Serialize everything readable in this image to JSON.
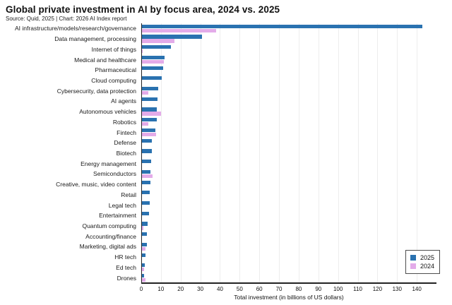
{
  "header": {
    "title": "Global private investment in AI by focus area, 2024 vs. 2025",
    "subtitle": "Source: Quid, 2025 | Chart: 2026 AI Index report"
  },
  "colors": {
    "bar_2025": "#2a72b0",
    "bar_2024": "#e3abe9",
    "axis": "#222222",
    "gridline": "#ededed"
  },
  "legend": {
    "items": [
      {
        "label": "2025",
        "color": "#2a72b0"
      },
      {
        "label": "2024",
        "color": "#e3abe9"
      }
    ]
  },
  "chart_data": {
    "type": "bar",
    "orientation": "horizontal",
    "title": "Global private investment in AI by focus area, 2024 vs. 2025",
    "subtitle": "Source: Quid, 2025 | Chart: 2026 AI Index report",
    "xlabel": "Total investment (in billions of US dollars)",
    "ylabel": "",
    "xlim": [
      0,
      150
    ],
    "xticks": [
      0,
      10,
      20,
      30,
      40,
      50,
      60,
      70,
      80,
      90,
      100,
      110,
      120,
      130,
      140
    ],
    "grid": true,
    "legend_position": "bottom-right",
    "categories": [
      "AI infrastructure/models/research/governance",
      "Data management, processing",
      "Internet of things",
      "Medical and healthcare",
      "Pharmaceutical",
      "Cloud computing",
      "Cybersecurity, data protection",
      "AI agents",
      "Autonomous vehicles",
      "Robotics",
      "Fintech",
      "Defense",
      "Biotech",
      "Energy management",
      "Semiconductors",
      "Creative, music, video content",
      "Retail",
      "Legal tech",
      "Entertainment",
      "Quantum computing",
      "Accounting/finance",
      "Marketing, digital ads",
      "HR tech",
      "Ed tech",
      "Drones"
    ],
    "series": [
      {
        "name": "2025",
        "color": "#2a72b0",
        "values": [
          143,
          31,
          15,
          12,
          11,
          10.3,
          8.5,
          8.3,
          8,
          7.8,
          7,
          5.5,
          5.3,
          5,
          4.8,
          4.6,
          4.4,
          4.2,
          4.1,
          3.2,
          2.7,
          2.7,
          2.2,
          1.7,
          1.6
        ]
      },
      {
        "name": "2024",
        "color": "#e3abe9",
        "values": [
          38,
          17,
          0.7,
          11.5,
          0.4,
          0.5,
          3.7,
          0.4,
          10,
          3.7,
          7.7,
          0.3,
          0.3,
          0.3,
          5.8,
          0.5,
          0.5,
          0.3,
          0.3,
          0.9,
          0.3,
          2.0,
          0.4,
          1.4,
          2.2
        ]
      }
    ]
  }
}
